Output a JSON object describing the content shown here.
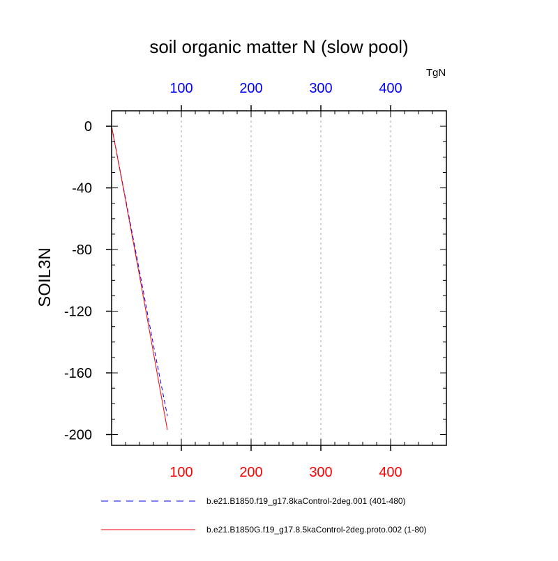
{
  "chart_data": {
    "type": "line",
    "title": "soil organic matter N (slow pool)",
    "ylabel": "SOIL3N",
    "units": "TgN",
    "xlim": [
      0,
      480
    ],
    "ylim": [
      -207,
      10
    ],
    "x_ticks": [
      100,
      200,
      300,
      400
    ],
    "y_ticks": [
      0,
      -40,
      -80,
      -120,
      -160,
      -200
    ],
    "top_axis_color": "#0000ff",
    "bottom_axis_color": "#ff0000",
    "grid": "vertical dashed at major x ticks",
    "series": [
      {
        "name": "b.e21.B1850.f19_g17.8kaControl-2deg.001 (401-480)",
        "color": "#0000ff",
        "style": "dashed",
        "x": [
          0,
          20,
          40,
          60,
          80
        ],
        "y": [
          0,
          -47,
          -94,
          -142,
          -188
        ]
      },
      {
        "name": "b.e21.B1850G.f19_g17.8.5kaControl-2deg.proto.002 (1-80)",
        "color": "#ff0000",
        "style": "solid",
        "x": [
          0,
          20,
          40,
          60,
          80
        ],
        "y": [
          0,
          -48,
          -97,
          -147,
          -197
        ]
      }
    ]
  }
}
